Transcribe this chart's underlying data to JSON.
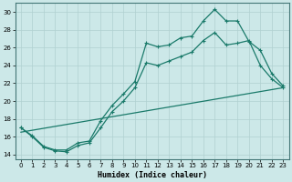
{
  "xlabel": "Humidex (Indice chaleur)",
  "bg_color": "#cce8e8",
  "grid_color": "#b0d0d0",
  "line_color": "#1a7a6a",
  "xlim": [
    -0.5,
    23.5
  ],
  "ylim": [
    13.5,
    31.0
  ],
  "xticks": [
    0,
    1,
    2,
    3,
    4,
    5,
    6,
    7,
    8,
    9,
    10,
    11,
    12,
    13,
    14,
    15,
    16,
    17,
    18,
    19,
    20,
    21,
    22,
    23
  ],
  "yticks": [
    14,
    16,
    18,
    20,
    22,
    24,
    26,
    28,
    30
  ],
  "curve1_x": [
    0,
    1,
    2,
    3,
    4,
    5,
    6,
    7,
    8,
    9,
    10,
    11,
    12,
    13,
    14,
    15,
    16,
    17,
    18,
    19,
    20,
    21,
    22,
    23
  ],
  "curve1_y": [
    17.0,
    16.1,
    14.9,
    14.5,
    14.5,
    15.3,
    15.5,
    17.8,
    19.5,
    20.8,
    22.2,
    26.5,
    26.1,
    26.3,
    27.1,
    27.3,
    29.0,
    30.3,
    29.0,
    29.0,
    26.7,
    25.7,
    23.1,
    21.7
  ],
  "curve2_x": [
    0,
    1,
    2,
    3,
    4,
    5,
    6,
    7,
    8,
    9,
    10,
    11,
    12,
    13,
    14,
    15,
    16,
    17,
    18,
    19,
    20,
    21,
    22,
    23
  ],
  "curve2_y": [
    17.0,
    16.0,
    14.8,
    14.4,
    14.3,
    15.0,
    15.3,
    17.0,
    18.8,
    20.0,
    21.5,
    24.3,
    24.0,
    24.5,
    25.0,
    25.5,
    26.8,
    27.7,
    26.3,
    26.5,
    26.8,
    24.0,
    22.5,
    21.5
  ],
  "line3_x": [
    0,
    23
  ],
  "line3_y": [
    16.5,
    21.5
  ]
}
